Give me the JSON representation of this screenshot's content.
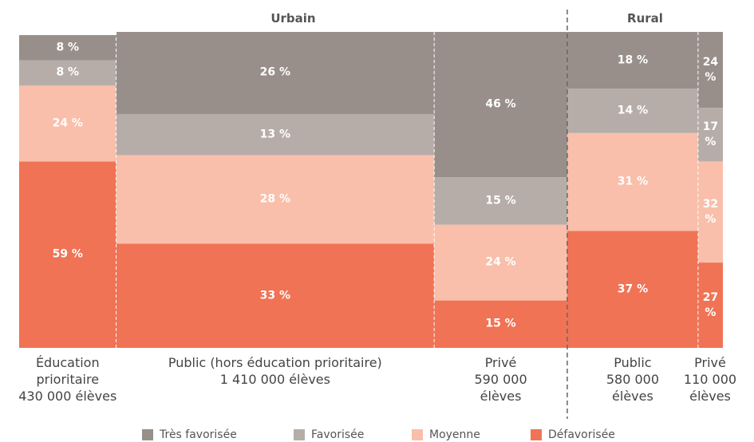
{
  "chart_data": {
    "type": "mekko",
    "groups": [
      {
        "name": "Urbain",
        "size": 3
      },
      {
        "name": "Rural",
        "size": 2
      }
    ],
    "categories": [
      "Éducation prioritaire",
      "Public (hors éducation prioritaire)",
      "Privé",
      "Public",
      "Privé"
    ],
    "widths": [
      430000,
      1410000,
      590000,
      580000,
      110000
    ],
    "width_labels": [
      "430 000 élèves",
      "1 410 000 élèves",
      "590 000 élèves",
      "580 000 élèves",
      "110 000 élèves"
    ],
    "ylim": [
      0,
      100
    ],
    "series": [
      {
        "name": "Défavorisée",
        "color": "#f07355",
        "values": [
          59,
          33,
          15,
          37,
          27
        ],
        "value_labels": [
          "59 %",
          "33 %",
          "15 %",
          "37 %",
          "27 %"
        ]
      },
      {
        "name": "Moyenne",
        "color": "#f9bfaa",
        "values": [
          24,
          28,
          24,
          31,
          32
        ],
        "value_labels": [
          "24 %",
          "28 %",
          "24 %",
          "31 %",
          "32 %"
        ]
      },
      {
        "name": "Favorisée",
        "color": "#b7ada8",
        "values": [
          8,
          13,
          15,
          14,
          17
        ],
        "value_labels": [
          "8 %",
          "13 %",
          "15 %",
          "14 %",
          "17 %"
        ]
      },
      {
        "name": "Très favorisée",
        "color": "#998f8a",
        "values": [
          8,
          26,
          46,
          18,
          24
        ],
        "value_labels": [
          "8 %",
          "26 %",
          "46 %",
          "18 %",
          "24 %"
        ]
      }
    ],
    "legend": "bottom"
  }
}
